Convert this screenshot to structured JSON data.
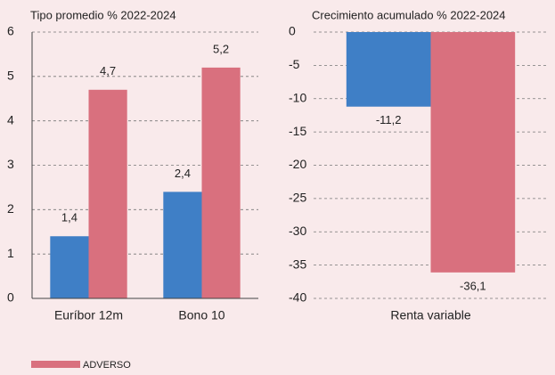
{
  "chart_data": [
    {
      "type": "bar",
      "title": "Tipo promedio % 2022-2024",
      "categories": [
        "Euríbor 12m",
        "Bono 10"
      ],
      "series": [
        {
          "color": "#3f7fc6",
          "values": [
            1.4,
            2.4
          ],
          "value_labels": [
            "1,4",
            "2,4"
          ]
        },
        {
          "name": "ADVERSO",
          "color": "#d9707e",
          "values": [
            4.7,
            5.2
          ],
          "value_labels": [
            "4,7",
            "5,2"
          ]
        }
      ],
      "ylim": [
        0,
        6
      ],
      "yticks": [
        0,
        1,
        2,
        3,
        4,
        5,
        6
      ],
      "grid": true
    },
    {
      "type": "bar",
      "title": "Crecimiento acumulado % 2022-2024",
      "categories": [
        "Renta variable"
      ],
      "series": [
        {
          "color": "#3f7fc6",
          "values": [
            -11.2
          ],
          "value_labels": [
            "-11,2"
          ]
        },
        {
          "name": "ADVERSO",
          "color": "#d9707e",
          "values": [
            -36.1
          ],
          "value_labels": [
            "-36,1"
          ]
        }
      ],
      "ylim": [
        -40,
        0
      ],
      "yticks": [
        0,
        -5,
        -10,
        -15,
        -20,
        -25,
        -30,
        -35,
        -40
      ],
      "grid": true
    }
  ]
}
